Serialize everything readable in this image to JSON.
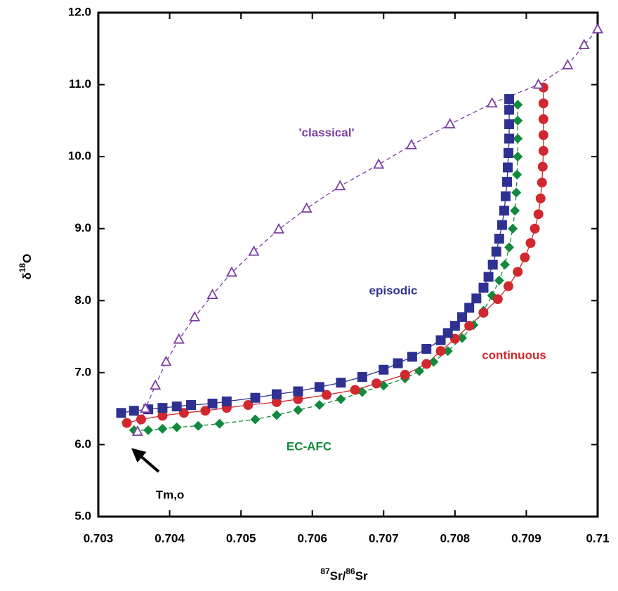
{
  "chart_data": {
    "type": "scatter",
    "xlabel": [
      "87",
      "Sr/",
      "86",
      "Sr"
    ],
    "xlabel_sup": [
      true,
      false,
      true,
      false
    ],
    "ylabel": [
      "δ",
      "18",
      "O"
    ],
    "ylabel_sup": [
      false,
      true,
      false
    ],
    "xlim": [
      0.703,
      0.71
    ],
    "xticks": [
      0.703,
      0.704,
      0.705,
      0.706,
      0.707,
      0.708,
      0.709,
      0.71
    ],
    "ylim": [
      5,
      12
    ],
    "yticks": [
      {
        "value": 5,
        "label": "5.0"
      },
      {
        "value": 6,
        "label": "6.0"
      },
      {
        "value": 7,
        "label": "7.0"
      },
      {
        "value": 8,
        "label": "8.0"
      },
      {
        "value": 9,
        "label": "9.0"
      },
      {
        "value": 10,
        "label": "10.0"
      },
      {
        "value": 11,
        "label": "11.0"
      },
      {
        "value": 12,
        "label": "12.0"
      }
    ],
    "series": [
      {
        "name": "EC-AFC",
        "color": "#11893c",
        "marker": "diamond",
        "line_style": "dashed",
        "x": [
          0.7035,
          0.7037,
          0.7039,
          0.7041,
          0.7044,
          0.7047,
          0.7052,
          0.7055,
          0.7058,
          0.7061,
          0.7064,
          0.7067,
          0.707,
          0.7073,
          0.7075,
          0.7077,
          0.7079,
          0.7081,
          0.70826,
          0.7084,
          0.70852,
          0.70862,
          0.7087,
          0.70876,
          0.70881,
          0.70884,
          0.70886,
          0.70887,
          0.70888,
          0.70888,
          0.70888,
          0.70888
        ],
        "values": [
          6.2,
          6.2,
          6.22,
          6.24,
          6.26,
          6.29,
          6.35,
          6.41,
          6.48,
          6.55,
          6.63,
          6.73,
          6.82,
          6.92,
          7.02,
          7.15,
          7.3,
          7.48,
          7.66,
          7.86,
          8.07,
          8.28,
          8.5,
          8.74,
          9.0,
          9.25,
          9.5,
          9.75,
          10.0,
          10.25,
          10.5,
          10.72
        ]
      },
      {
        "name": "continuous",
        "color": "#d0282e",
        "marker": "circle",
        "line_style": "solid",
        "x": [
          0.7034,
          0.7036,
          0.7039,
          0.7042,
          0.7045,
          0.7048,
          0.7051,
          0.7055,
          0.7058,
          0.7062,
          0.7066,
          0.7069,
          0.7073,
          0.7076,
          0.7078,
          0.708,
          0.7082,
          0.7084,
          0.7086,
          0.70875,
          0.70888,
          0.70898,
          0.70906,
          0.70912,
          0.70917,
          0.7092,
          0.70922,
          0.70923,
          0.70924,
          0.70924,
          0.70924,
          0.70924,
          0.70924
        ],
        "values": [
          6.3,
          6.35,
          6.4,
          6.44,
          6.47,
          6.51,
          6.55,
          6.59,
          6.63,
          6.69,
          6.76,
          6.85,
          6.97,
          7.12,
          7.3,
          7.47,
          7.65,
          7.83,
          8.02,
          8.2,
          8.4,
          8.6,
          8.8,
          9.0,
          9.2,
          9.42,
          9.64,
          9.86,
          10.08,
          10.3,
          10.52,
          10.74,
          10.96
        ]
      },
      {
        "name": "episodic",
        "color": "#2e3192",
        "marker": "square",
        "line_style": "solid",
        "x": [
          0.70332,
          0.7035,
          0.7037,
          0.7039,
          0.7041,
          0.7043,
          0.7046,
          0.7048,
          0.7052,
          0.7055,
          0.7058,
          0.7061,
          0.7064,
          0.7067,
          0.707,
          0.7072,
          0.7074,
          0.7076,
          0.7078,
          0.7079,
          0.708,
          0.7081,
          0.7082,
          0.7083,
          0.7084,
          0.70847,
          0.70853,
          0.70858,
          0.70862,
          0.70866,
          0.70869,
          0.70871,
          0.70873,
          0.70874,
          0.70875,
          0.70876,
          0.70876,
          0.70876,
          0.70876
        ],
        "values": [
          6.44,
          6.47,
          6.49,
          6.51,
          6.53,
          6.55,
          6.57,
          6.6,
          6.65,
          6.7,
          6.74,
          6.8,
          6.86,
          6.94,
          7.04,
          7.13,
          7.22,
          7.33,
          7.45,
          7.55,
          7.65,
          7.77,
          7.9,
          8.03,
          8.18,
          8.33,
          8.5,
          8.68,
          8.86,
          9.05,
          9.25,
          9.45,
          9.65,
          9.85,
          10.05,
          10.25,
          10.45,
          10.65,
          10.8
        ]
      },
      {
        "name": "'classical'",
        "color": "#7b3fa0",
        "marker": "triangle-open",
        "line_style": "dashed",
        "x": [
          0.70355,
          0.70366,
          0.7038,
          0.70395,
          0.70413,
          0.70435,
          0.7046,
          0.70487,
          0.70518,
          0.70553,
          0.70592,
          0.70639,
          0.70693,
          0.70739,
          0.70793,
          0.70852,
          0.70917,
          0.70958,
          0.70981,
          0.71
        ],
        "values": [
          6.18,
          6.5,
          6.82,
          7.15,
          7.46,
          7.77,
          8.08,
          8.39,
          8.68,
          8.99,
          9.28,
          9.59,
          9.89,
          10.16,
          10.45,
          10.74,
          11.0,
          11.27,
          11.55,
          11.77
        ]
      }
    ],
    "annotations": [
      "Tm,o"
    ]
  }
}
